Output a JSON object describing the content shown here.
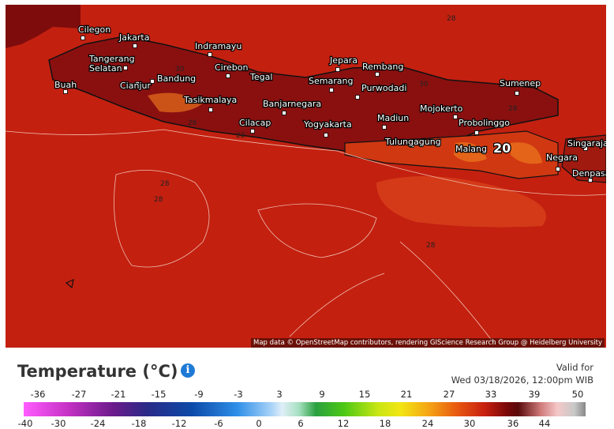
{
  "map": {
    "cities": [
      {
        "lines": [
          "Cilegon"
        ]
      },
      {
        "lines": [
          "Jakarta"
        ]
      },
      {
        "lines": [
          "Tangerang",
          "Selatan"
        ]
      },
      {
        "lines": [
          "Indramayu"
        ]
      },
      {
        "lines": [
          "Bandung"
        ]
      },
      {
        "lines": [
          "Cirebon"
        ]
      },
      {
        "lines": [
          "Tegal"
        ]
      },
      {
        "lines": [
          "Jepara"
        ]
      },
      {
        "lines": [
          "Rembang"
        ]
      },
      {
        "lines": [
          "Semarang"
        ]
      },
      {
        "lines": [
          "Purwodadi"
        ]
      },
      {
        "lines": [
          "Sumenep"
        ]
      },
      {
        "lines": [
          "Buah"
        ]
      },
      {
        "lines": [
          "Cianjur"
        ]
      },
      {
        "lines": [
          "Tasikmalaya"
        ]
      },
      {
        "lines": [
          "Banjarnegara"
        ]
      },
      {
        "lines": [
          "Mojokerto"
        ]
      },
      {
        "lines": [
          "Madiun"
        ]
      },
      {
        "lines": [
          "Probolinggo"
        ]
      },
      {
        "lines": [
          "Cilacap"
        ]
      },
      {
        "lines": [
          "Yogyakarta"
        ]
      },
      {
        "lines": [
          "Tulungagung"
        ]
      },
      {
        "lines": [
          "Malang"
        ]
      },
      {
        "lines": [
          "Singaraja"
        ]
      },
      {
        "lines": [
          "Negara"
        ]
      },
      {
        "lines": [
          "Denpasar"
        ]
      }
    ],
    "highlight": "20",
    "contour_labels": [
      "28",
      "30",
      "30",
      "26",
      "28",
      "28",
      "28",
      "28",
      "22"
    ],
    "attribution": "Map data © OpenStreetMap contributors, rendering GIScience Research Group @ Heidelberg University"
  },
  "legend": {
    "title": "Temperature (°C)",
    "info": "i",
    "valid_label": "Valid for",
    "valid_time": "Wed 03/18/2026, 12:00pm WIB",
    "top_labels": [
      -36,
      -27,
      -21,
      -15,
      -9,
      -3,
      3,
      9,
      15,
      21,
      27,
      33,
      39,
      50
    ],
    "bottom_labels": [
      -40,
      -30,
      -24,
      -18,
      -12,
      -6,
      0,
      6,
      12,
      18,
      24,
      30,
      36,
      44
    ]
  }
}
